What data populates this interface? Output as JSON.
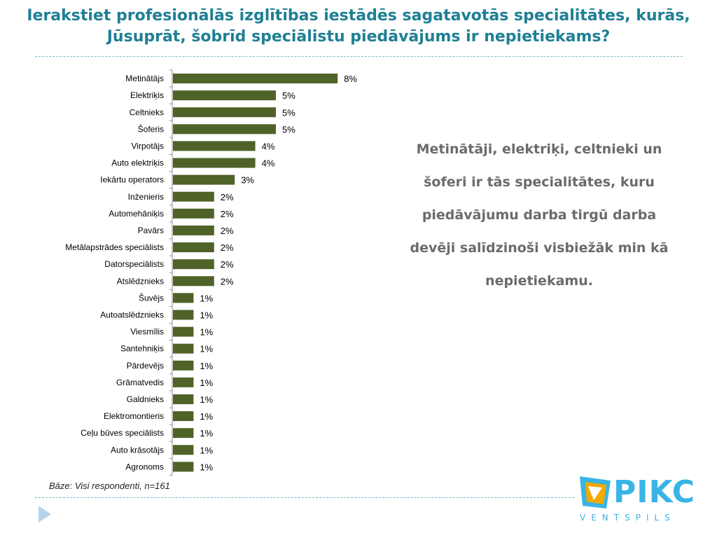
{
  "slide": {
    "title": "Ierakstiet profesionālās izglītības iestādēs sagatavotās specialitātes, kurās, Jūsuprāt, šobrīd speciālistu piedāvājums ir nepietiekams?",
    "base_note": "Bāze: Visi respondenti, n=161",
    "insight": "Metinātāji, elektriķi, celtnieki un šoferi ir tās specialitātes, kuru piedāvājumu darba tirgū darba devēji salīdzinoši visbiežāk min kā nepietiekamu.",
    "logo_text": "PIKC",
    "logo_sub": "VENTSPILS"
  },
  "chart_data": {
    "type": "bar",
    "orientation": "horizontal",
    "categories": [
      "Metinātājs",
      "Elektriķis",
      "Celtnieks",
      "Šoferis",
      "Virpotājs",
      "Auto elektriķis",
      "Iekārtu operators",
      "Inženieris",
      "Automehāniķis",
      "Pavārs",
      "Metālapstrādes speciālists",
      "Datorspeciālists",
      "Atslēdznieks",
      "Šuvējs",
      "Autoatslēdznieks",
      "Viesmīlis",
      "Santehniķis",
      "Pārdevējs",
      "Grāmatvedis",
      "Galdnieks",
      "Elektromontieris",
      "Ceļu būves speciālists",
      "Auto krāsotājs",
      "Agronoms"
    ],
    "values": [
      8,
      5,
      5,
      5,
      4,
      4,
      3,
      2,
      2,
      2,
      2,
      2,
      2,
      1,
      1,
      1,
      1,
      1,
      1,
      1,
      1,
      1,
      1,
      1
    ],
    "value_labels": [
      "8%",
      "5%",
      "5%",
      "5%",
      "4%",
      "4%",
      "3%",
      "2%",
      "2%",
      "2%",
      "2%",
      "2%",
      "2%",
      "1%",
      "1%",
      "1%",
      "1%",
      "1%",
      "1%",
      "1%",
      "1%",
      "1%",
      "1%",
      "1%"
    ],
    "unit": "%",
    "xlim": [
      0,
      8
    ],
    "bar_color": "#4f6228",
    "grid": false,
    "legend": "none"
  }
}
